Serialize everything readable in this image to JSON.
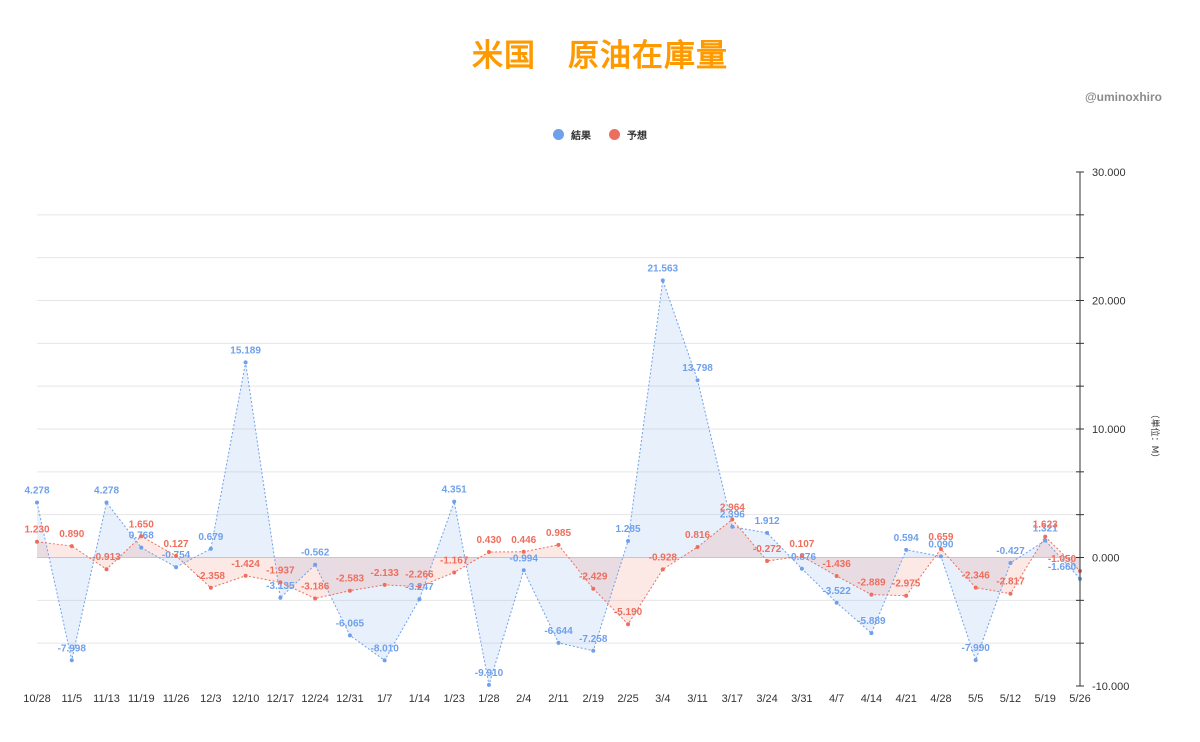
{
  "chart_data": {
    "type": "line",
    "title": "米国　原油在庫量",
    "credit": "@uminoxhiro",
    "ylabel": "（単位：M）",
    "ylim": [
      -10,
      30
    ],
    "yticks": [
      30,
      20,
      10,
      0,
      -10
    ],
    "ytick_labels": [
      "30.000",
      "20.000",
      "10.000",
      "0.000",
      "-10.000"
    ],
    "grid": true,
    "legend_position": "top-center",
    "categories": [
      "10/28",
      "11/5",
      "11/13",
      "11/19",
      "11/26",
      "12/3",
      "12/10",
      "12/17",
      "12/24",
      "12/31",
      "1/7",
      "1/14",
      "1/23",
      "1/28",
      "2/4",
      "2/11",
      "2/19",
      "2/25",
      "3/4",
      "3/11",
      "3/17",
      "3/24",
      "3/31",
      "4/7",
      "4/14",
      "4/21",
      "4/28",
      "5/5",
      "5/12",
      "5/19",
      "5/26"
    ],
    "series": [
      {
        "name": "結果",
        "color": "#6fa0ec",
        "values": [
          4.278,
          -7.998,
          4.278,
          0.768,
          -0.754,
          0.679,
          15.189,
          -3.135,
          -0.562,
          -6.065,
          -8.01,
          -3.247,
          4.351,
          -9.91,
          -0.994,
          -6.644,
          -7.258,
          1.285,
          21.563,
          13.798,
          2.396,
          1.912,
          -0.876,
          -3.522,
          -5.889,
          0.594,
          0.09,
          -7.99,
          -0.427,
          1.321,
          -1.66
        ],
        "labels": [
          "4.278",
          "-7.998",
          "4.278",
          "0.768",
          "-0.754",
          "0.679",
          "15.189",
          "-3.135",
          "-0.562",
          "-6.065",
          "-8.010",
          "-3.247",
          "4.351",
          "-9.910",
          "-0.994",
          "-6.644",
          "-7.258",
          "1.285",
          "21.563",
          "13.798",
          "2.396",
          "1.912",
          "-0.876",
          "-3.522",
          "-5.889",
          "0.594",
          "0.090",
          "-7.990",
          "-0.427",
          "1.321",
          "-1.660"
        ]
      },
      {
        "name": "予想",
        "color": "#ee6e5e",
        "values": [
          1.23,
          0.89,
          -0.913,
          1.65,
          0.127,
          -2.358,
          -1.424,
          -1.937,
          -3.186,
          -2.583,
          -2.133,
          -2.266,
          -1.167,
          0.43,
          0.446,
          0.985,
          -2.429,
          -5.19,
          -0.928,
          0.816,
          2.964,
          -0.272,
          0.107,
          -1.436,
          -2.889,
          -2.975,
          0.659,
          -2.346,
          -2.817,
          1.623,
          -1.05
        ],
        "labels": [
          "1.230",
          "0.890",
          "-0.913",
          "1.650",
          "0.127",
          "-2.358",
          "-1.424",
          "-1.937",
          "-3.186",
          "-2.583",
          "-2.133",
          "-2.266",
          "-1.167",
          "0.430",
          "0.446",
          "0.985",
          "-2.429",
          "-5.190",
          "-0.928",
          "0.816",
          "2.964",
          "-0.272",
          "0.107",
          "-1.436",
          "-2.889",
          "-2.975",
          "0.659",
          "-2.346",
          "-2.817",
          "1.623",
          "-1.050"
        ]
      }
    ]
  }
}
